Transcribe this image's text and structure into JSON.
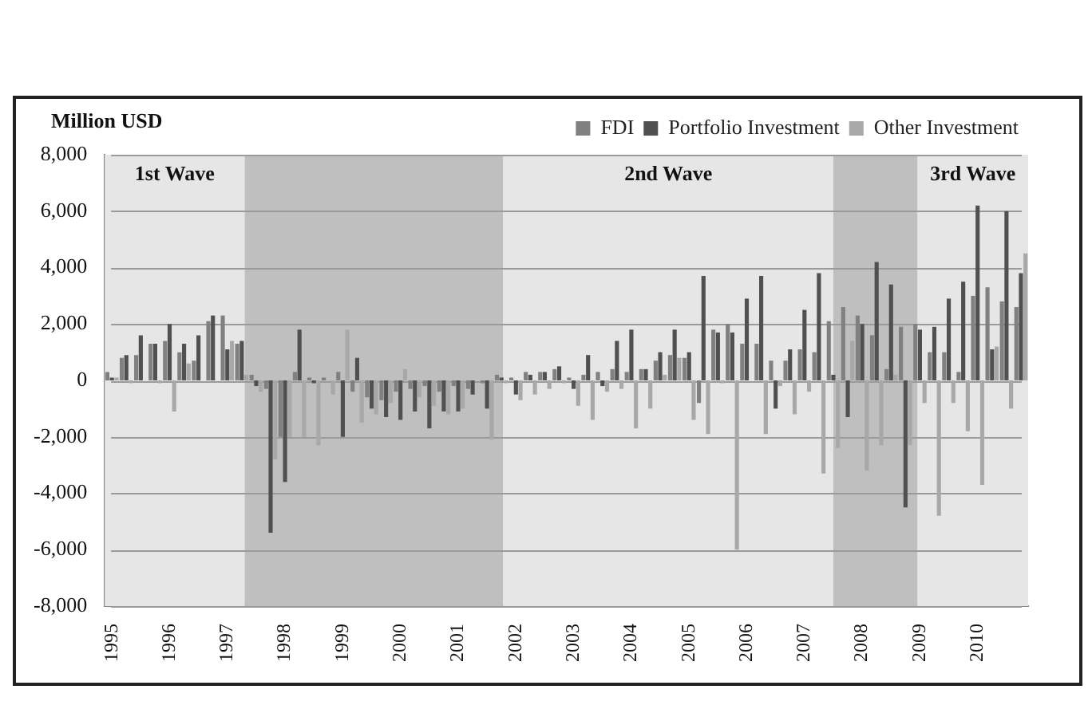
{
  "chart_data": {
    "type": "bar",
    "ylabel": "Million USD",
    "x": [
      1995,
      1995.25,
      1995.5,
      1995.75,
      1996,
      1996.25,
      1996.5,
      1996.75,
      1997,
      1997.25,
      1997.5,
      1997.75,
      1998,
      1998.25,
      1998.5,
      1998.75,
      1999,
      1999.25,
      1999.5,
      1999.75,
      2000,
      2000.25,
      2000.5,
      2000.75,
      2001,
      2001.25,
      2001.5,
      2001.75,
      2002,
      2002.25,
      2002.5,
      2002.75,
      2003,
      2003.25,
      2003.5,
      2003.75,
      2004,
      2004.25,
      2004.5,
      2004.75,
      2005,
      2005.25,
      2005.5,
      2005.75,
      2006,
      2006.25,
      2006.5,
      2006.75,
      2007,
      2007.25,
      2007.5,
      2007.75,
      2008,
      2008.25,
      2008.5,
      2008.75,
      2009,
      2009.25,
      2009.5,
      2009.75,
      2010,
      2010.25,
      2010.5,
      2010.75
    ],
    "series": [
      {
        "name": "FDI",
        "color": "#808080",
        "values": [
          300,
          800,
          900,
          1300,
          1400,
          1000,
          700,
          2100,
          2300,
          1300,
          200,
          -300,
          -2000,
          300,
          100,
          100,
          300,
          -400,
          -600,
          -700,
          -400,
          -300,
          -200,
          -400,
          -200,
          -300,
          -100,
          200,
          100,
          300,
          300,
          400,
          100,
          200,
          300,
          400,
          300,
          400,
          700,
          900,
          800,
          -800,
          1800,
          2000,
          1300,
          1300,
          700,
          700,
          1100,
          1000,
          2100,
          2600,
          2300,
          1600,
          400,
          1900,
          2000,
          1000,
          1000,
          300,
          3000,
          3300,
          2800,
          2600
        ]
      },
      {
        "name": "Portfolio Investment",
        "color": "#505050",
        "values": [
          100,
          900,
          1600,
          1300,
          2000,
          1300,
          1600,
          2300,
          1100,
          1400,
          -200,
          -5400,
          -3600,
          1800,
          -100,
          0,
          -2000,
          800,
          -1000,
          -1300,
          -1400,
          -1100,
          -1700,
          -1100,
          -1100,
          -500,
          -1000,
          100,
          -500,
          200,
          300,
          500,
          -300,
          900,
          -200,
          1400,
          1800,
          400,
          1000,
          1800,
          1000,
          3700,
          1700,
          1700,
          2900,
          3700,
          -1000,
          1100,
          2500,
          3800,
          200,
          -1300,
          2000,
          4200,
          3400,
          -4500,
          1800,
          1900,
          2900,
          3500,
          6200,
          1100,
          6000,
          3800
        ]
      },
      {
        "name": "Other Investment",
        "color": "#a8a8a8",
        "values": [
          100,
          -100,
          0,
          -100,
          -1100,
          600,
          0,
          0,
          1400,
          200,
          -400,
          -2800,
          -2000,
          -2000,
          -2300,
          -500,
          1800,
          -1500,
          -1200,
          -800,
          400,
          -600,
          -900,
          -1200,
          -1000,
          0,
          -2100,
          -100,
          -700,
          -500,
          -300,
          -100,
          -900,
          -1400,
          -400,
          -300,
          -1700,
          -1000,
          200,
          800,
          -1400,
          -1900,
          -100,
          -6000,
          0,
          -1900,
          -200,
          -1200,
          -400,
          -3300,
          -2400,
          1400,
          -3200,
          -2300,
          200,
          -2300,
          -800,
          -4800,
          -800,
          -1800,
          -3700,
          1200,
          -1000,
          4500
        ]
      }
    ],
    "xlim": [
      1994.875,
      2010.875
    ],
    "xticks": [
      1995,
      1996,
      1997,
      1998,
      1999,
      2000,
      2001,
      2002,
      2003,
      2004,
      2005,
      2006,
      2007,
      2008,
      2009,
      2010
    ],
    "ylim": [
      -8000,
      8000
    ],
    "yticks": [
      {
        "value": -8000,
        "label": "-8,000"
      },
      {
        "value": -6000,
        "label": "-6,000"
      },
      {
        "value": -4000,
        "label": "-4,000"
      },
      {
        "value": -2000,
        "label": "-2,000"
      },
      0,
      {
        "value": 2000,
        "label": "2,000"
      },
      {
        "value": 4000,
        "label": "4,000"
      },
      {
        "value": 6000,
        "label": "6,000"
      },
      {
        "value": 8000,
        "label": "8,000"
      }
    ],
    "bands": [
      {
        "axis": "x",
        "from": 1994.875,
        "to": 1997.3,
        "label": "1st Wave",
        "color": "#e6e6e6"
      },
      {
        "axis": "x",
        "from": 1997.3,
        "to": 2001.78,
        "color": "#bfbfbf"
      },
      {
        "axis": "x",
        "from": 2001.78,
        "to": 2007.5,
        "label": "2nd Wave",
        "color": "#e6e6e6"
      },
      {
        "axis": "x",
        "from": 2007.5,
        "to": 2008.96,
        "color": "#bfbfbf"
      },
      {
        "axis": "x",
        "from": 2008.96,
        "to": 2010.875,
        "label": "3rd Wave",
        "color": "#e6e6e6"
      }
    ],
    "grid": "y",
    "legend": "top right"
  }
}
